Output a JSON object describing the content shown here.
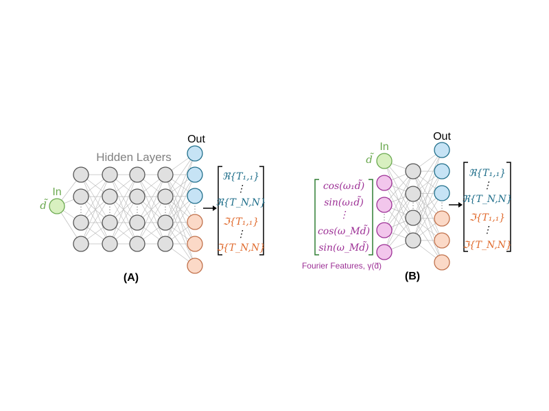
{
  "panel_a": {
    "label": "(A)",
    "hidden_layers_label": "Hidden Layers",
    "in_label": "In",
    "out_label": "Out",
    "input_var": "d̃",
    "output_vector": [
      {
        "text": "ℜ{T₁,₁}",
        "kind": "real"
      },
      {
        "text": "⋮",
        "kind": "real"
      },
      {
        "text": "ℜ{T_N,N}",
        "kind": "real"
      },
      {
        "text": "ℑ{T₁,₁}",
        "kind": "imag"
      },
      {
        "text": "⋮",
        "kind": "imag"
      },
      {
        "text": "ℑ{T_N,N}",
        "kind": "imag"
      }
    ]
  },
  "panel_b": {
    "label": "(B)",
    "in_label": "In",
    "out_label": "Out",
    "input_var": "d̃",
    "fourier_caption": "Fourier Features, γ(d̃)",
    "fourier_features": [
      "cos(ω₁d̃)",
      "sin(ω₁d̃)",
      "⋮",
      "cos(ω_Md̃)",
      "sin(ω_Md̃)"
    ],
    "output_vector": [
      {
        "text": "ℜ{T₁,₁}",
        "kind": "real"
      },
      {
        "text": "⋮",
        "kind": "real"
      },
      {
        "text": "ℜ{T_N,N}",
        "kind": "real"
      },
      {
        "text": "ℑ{T₁,₁}",
        "kind": "imag"
      },
      {
        "text": "⋮",
        "kind": "imag"
      },
      {
        "text": "ℑ{T_N,N}",
        "kind": "imag"
      }
    ]
  },
  "colors": {
    "input_node": "#d8f0c0",
    "input_stroke": "#6aa84f",
    "in_text": "#6aa84f",
    "hidden_node": "#e0e0e0",
    "fourier_node": "#f2c6ec",
    "fourier_text": "#9c2f95",
    "out_real": "#c6e3f5",
    "out_imag": "#fbd9c7",
    "real_text": "#1f6e8a",
    "imag_text": "#e06a2c",
    "edge": "#bdbdbd",
    "hidden_label": "#808080"
  }
}
